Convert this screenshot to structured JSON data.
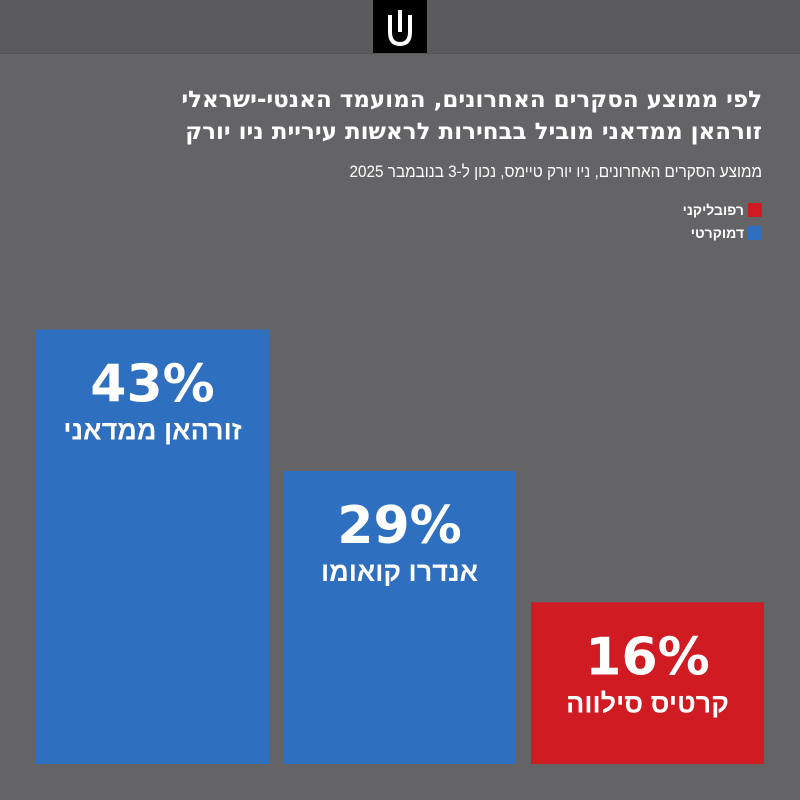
{
  "header": {
    "logo_icon": "ynet-logo-icon"
  },
  "title_lines": [
    "לפי ממוצע הסקרים האחרונים, המועמד האנטי-ישראלי",
    "זורהאן ממדאני מוביל בבחירות לראשות עיריית ניו יורק"
  ],
  "subtitle": "ממוצע הסקרים האחרונים, ניו יורק טיימס, נכון ל-3 בנובמבר 2025",
  "legend": [
    {
      "label": "רפובליקני",
      "color": "#cf1b21"
    },
    {
      "label": "דמוקרטי",
      "color": "#2f6fc0"
    }
  ],
  "chart_data": {
    "type": "bar",
    "categories": [
      "זורהאן ממדאני",
      "אנדרו קואומו",
      "קרטיס סילווה"
    ],
    "values": [
      43,
      29,
      16
    ],
    "value_labels": [
      "43%",
      "29%",
      "16%"
    ],
    "parties": [
      "דמוקרטי",
      "דמוקרטי",
      "רפובליקני"
    ],
    "colors": [
      "#2f6fc0",
      "#2f6fc0",
      "#cf1b21"
    ],
    "ylim": [
      0,
      57.5
    ],
    "grid": false,
    "legend_position": "top-right"
  }
}
